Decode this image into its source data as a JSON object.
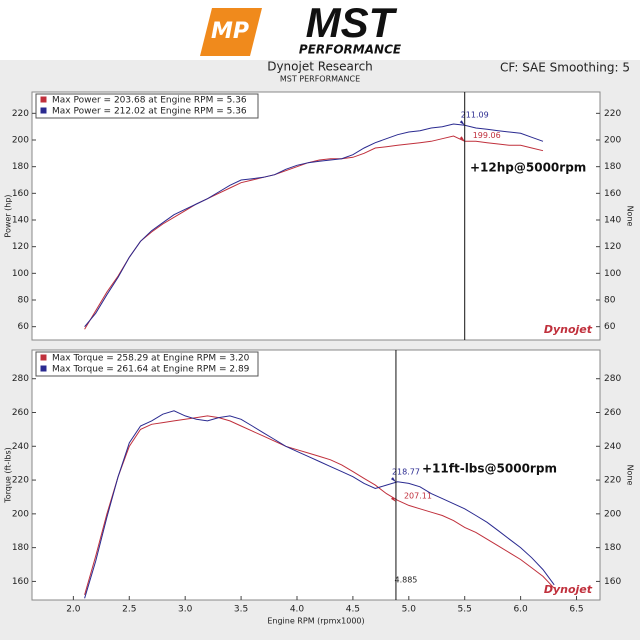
{
  "header": {
    "logo": "MST",
    "logo_sub": "PERFORMANCE",
    "logo_badge": "MP",
    "title": "Dynojet Research",
    "subtitle": "MST PERFORMANCE",
    "cf": "CF: SAE Smoothing: 5",
    "watermark": "Dynojet"
  },
  "chart_data": [
    {
      "type": "line",
      "y_label": "Power (hp)",
      "y2_label": "None",
      "annotation": "+12hp@5000rpm",
      "x": [
        2.1,
        2.2,
        2.3,
        2.4,
        2.5,
        2.6,
        2.7,
        2.8,
        2.9,
        3.0,
        3.1,
        3.2,
        3.3,
        3.4,
        3.5,
        3.6,
        3.7,
        3.8,
        3.9,
        4.0,
        4.1,
        4.2,
        4.3,
        4.4,
        4.5,
        4.6,
        4.7,
        4.8,
        4.9,
        5.0,
        5.1,
        5.2,
        5.3,
        5.4,
        5.5,
        5.6,
        5.7,
        5.8,
        5.9,
        6.0,
        6.1,
        6.2
      ],
      "series": [
        {
          "name": "Max Power = 203.68 at Engine RPM = 5.36",
          "color": "#c0303c",
          "values": [
            58,
            72,
            86,
            98,
            112,
            124,
            131,
            137,
            142,
            147,
            152,
            156,
            160,
            164,
            168,
            170,
            172,
            174,
            177,
            180,
            183,
            185,
            186,
            186,
            187,
            190,
            194,
            195,
            196,
            197,
            198,
            199,
            201,
            203,
            199,
            199,
            198,
            197,
            196,
            196,
            194,
            192
          ]
        },
        {
          "name": "Max Power = 212.02 at Engine RPM = 5.36",
          "color": "#2a2a90",
          "values": [
            60,
            70,
            84,
            97,
            112,
            124,
            132,
            138,
            144,
            148,
            152,
            156,
            161,
            166,
            170,
            171,
            172,
            174,
            178,
            181,
            183,
            184,
            185,
            186,
            189,
            194,
            198,
            201,
            204,
            206,
            207,
            209,
            210,
            212,
            211,
            209,
            208,
            207,
            206,
            205,
            202,
            199
          ]
        }
      ],
      "xlim": [
        1.63,
        6.71
      ],
      "ylim": [
        50,
        236
      ],
      "yticks": [
        60,
        80,
        100,
        120,
        140,
        160,
        180,
        200,
        220
      ],
      "cursor": {
        "x": 5.5,
        "values": [
          199.06,
          211.09
        ]
      }
    },
    {
      "type": "line",
      "y_label": "Torque (ft-lbs)",
      "y2_label": "None",
      "x_label": "Engine RPM (rpmx1000)",
      "annotation": "+11ft-lbs@5000rpm",
      "x": [
        2.1,
        2.2,
        2.3,
        2.4,
        2.5,
        2.6,
        2.7,
        2.8,
        2.9,
        3.0,
        3.1,
        3.2,
        3.3,
        3.4,
        3.5,
        3.6,
        3.7,
        3.8,
        3.9,
        4.0,
        4.1,
        4.2,
        4.3,
        4.4,
        4.5,
        4.6,
        4.7,
        4.8,
        4.9,
        5.0,
        5.1,
        5.2,
        5.3,
        5.4,
        5.5,
        5.6,
        5.7,
        5.8,
        5.9,
        6.0,
        6.1,
        6.2,
        6.3
      ],
      "series": [
        {
          "name": "Max Torque = 258.29 at Engine RPM = 3.20",
          "color": "#c0303c",
          "values": [
            152,
            175,
            200,
            222,
            240,
            250,
            253,
            254,
            255,
            256,
            257,
            258,
            257,
            255,
            252,
            249,
            246,
            243,
            240,
            238,
            236,
            234,
            232,
            229,
            225,
            221,
            217,
            212,
            208,
            205,
            203,
            201,
            199,
            196,
            192,
            189,
            185,
            181,
            177,
            173,
            168,
            163,
            156
          ]
        },
        {
          "name": "Max Torque = 261.64 at Engine RPM = 2.89",
          "color": "#2a2a90",
          "values": [
            150,
            172,
            198,
            222,
            242,
            252,
            255,
            259,
            261,
            258,
            256,
            255,
            257,
            258,
            256,
            252,
            248,
            244,
            240,
            237,
            234,
            231,
            228,
            225,
            222,
            218,
            215,
            217,
            219,
            218,
            216,
            212,
            209,
            206,
            203,
            199,
            195,
            190,
            185,
            180,
            174,
            167,
            158
          ]
        }
      ],
      "xlim": [
        1.63,
        6.71
      ],
      "ylim": [
        149,
        297
      ],
      "yticks": [
        160,
        180,
        200,
        220,
        240,
        260,
        280
      ],
      "xticks": [
        {
          "value": 2,
          "label": "2.0"
        },
        2.5,
        {
          "value": 3,
          "label": "3.0"
        },
        3.5,
        {
          "value": 4,
          "label": "4.0"
        },
        4.5,
        {
          "value": 5,
          "label": "5.0"
        },
        5.5,
        {
          "value": 6,
          "label": "6.0"
        },
        6.5
      ],
      "cursor": {
        "x": 4.885,
        "values": [
          207.11,
          218.77
        ]
      }
    }
  ]
}
